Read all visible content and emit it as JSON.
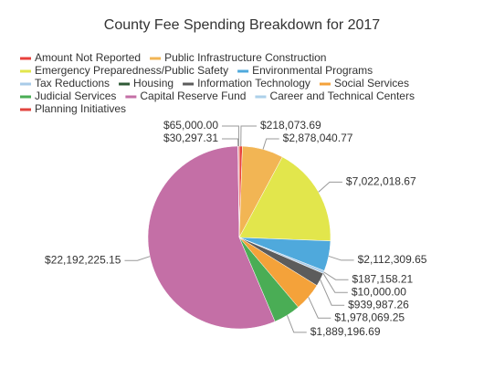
{
  "chart_data": {
    "type": "pie",
    "title": "County Fee Spending Breakdown for 2017",
    "categories": [
      "Amount Not Reported",
      "Public Infrastructure Construction",
      "Emergency Preparedness/Public Safety",
      "Environmental Programs",
      "Tax Reductions",
      "Housing",
      "Information Technology",
      "Social Services",
      "Judicial Services",
      "Capital Reserve Fund",
      "Career and Technical Centers",
      "Planning Initiatives"
    ],
    "values": [
      218073.69,
      2878040.77,
      7022018.67,
      2112309.65,
      187158.21,
      10000,
      939987.26,
      1978069.25,
      1889196.69,
      22192225.15,
      30297.31,
      65000
    ],
    "value_labels": [
      "$218,073.69",
      "$2,878,040.77",
      "$7,022,018.67",
      "$2,112,309.65",
      "$187,158.21",
      "$10,000.00",
      "$939,987.26",
      "$1,978,069.25",
      "$1,889,196.69",
      "$22,192,225.15",
      "$30,297.31",
      "$65,000.00"
    ],
    "colors": [
      "#e8413c",
      "#f2b554",
      "#e2e64c",
      "#4fa9dc",
      "#a9cbe8",
      "#2f5a36",
      "#5c5c5c",
      "#f4a23a",
      "#4aad55",
      "#c46fa6",
      "#acd0ea",
      "#e2453f"
    ]
  }
}
